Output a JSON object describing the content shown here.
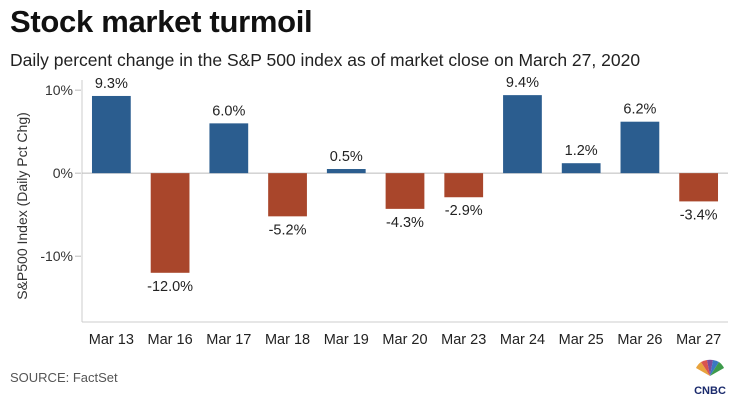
{
  "header": {
    "title": "Stock market turmoil",
    "subtitle": "Daily percent change in the S&P 500 index as of market close on March 27, 2020"
  },
  "footer": {
    "source": "SOURCE: FactSet",
    "logo_text": "CNBC"
  },
  "colors": {
    "positive": "#2b5d8f",
    "negative": "#a9462b"
  },
  "chart_data": {
    "type": "bar",
    "categories": [
      "Mar 13",
      "Mar 16",
      "Mar 17",
      "Mar 18",
      "Mar 19",
      "Mar 20",
      "Mar 23",
      "Mar 24",
      "Mar 25",
      "Mar 26",
      "Mar 27"
    ],
    "values": [
      9.3,
      -12.0,
      6.0,
      -5.2,
      0.5,
      -4.3,
      -2.9,
      9.4,
      1.2,
      6.2,
      -3.4
    ],
    "data_labels": [
      "9.3%",
      "-12.0%",
      "6.0%",
      "-5.2%",
      "0.5%",
      "-4.3%",
      "-2.9%",
      "9.4%",
      "1.2%",
      "6.2%",
      "-3.4%"
    ],
    "title": "Stock market turmoil",
    "subtitle": "Daily percent change in the S&P 500 index as of market close on March 27, 2020",
    "xlabel": "",
    "ylabel": "S&P500 Index (Daily Pct Chg)",
    "ylim": [
      -16,
      10.5
    ],
    "yticks": [
      10,
      0,
      -10
    ],
    "ytick_labels": [
      "10%",
      "0%",
      "-10%"
    ],
    "grid": false,
    "legend": "none"
  }
}
